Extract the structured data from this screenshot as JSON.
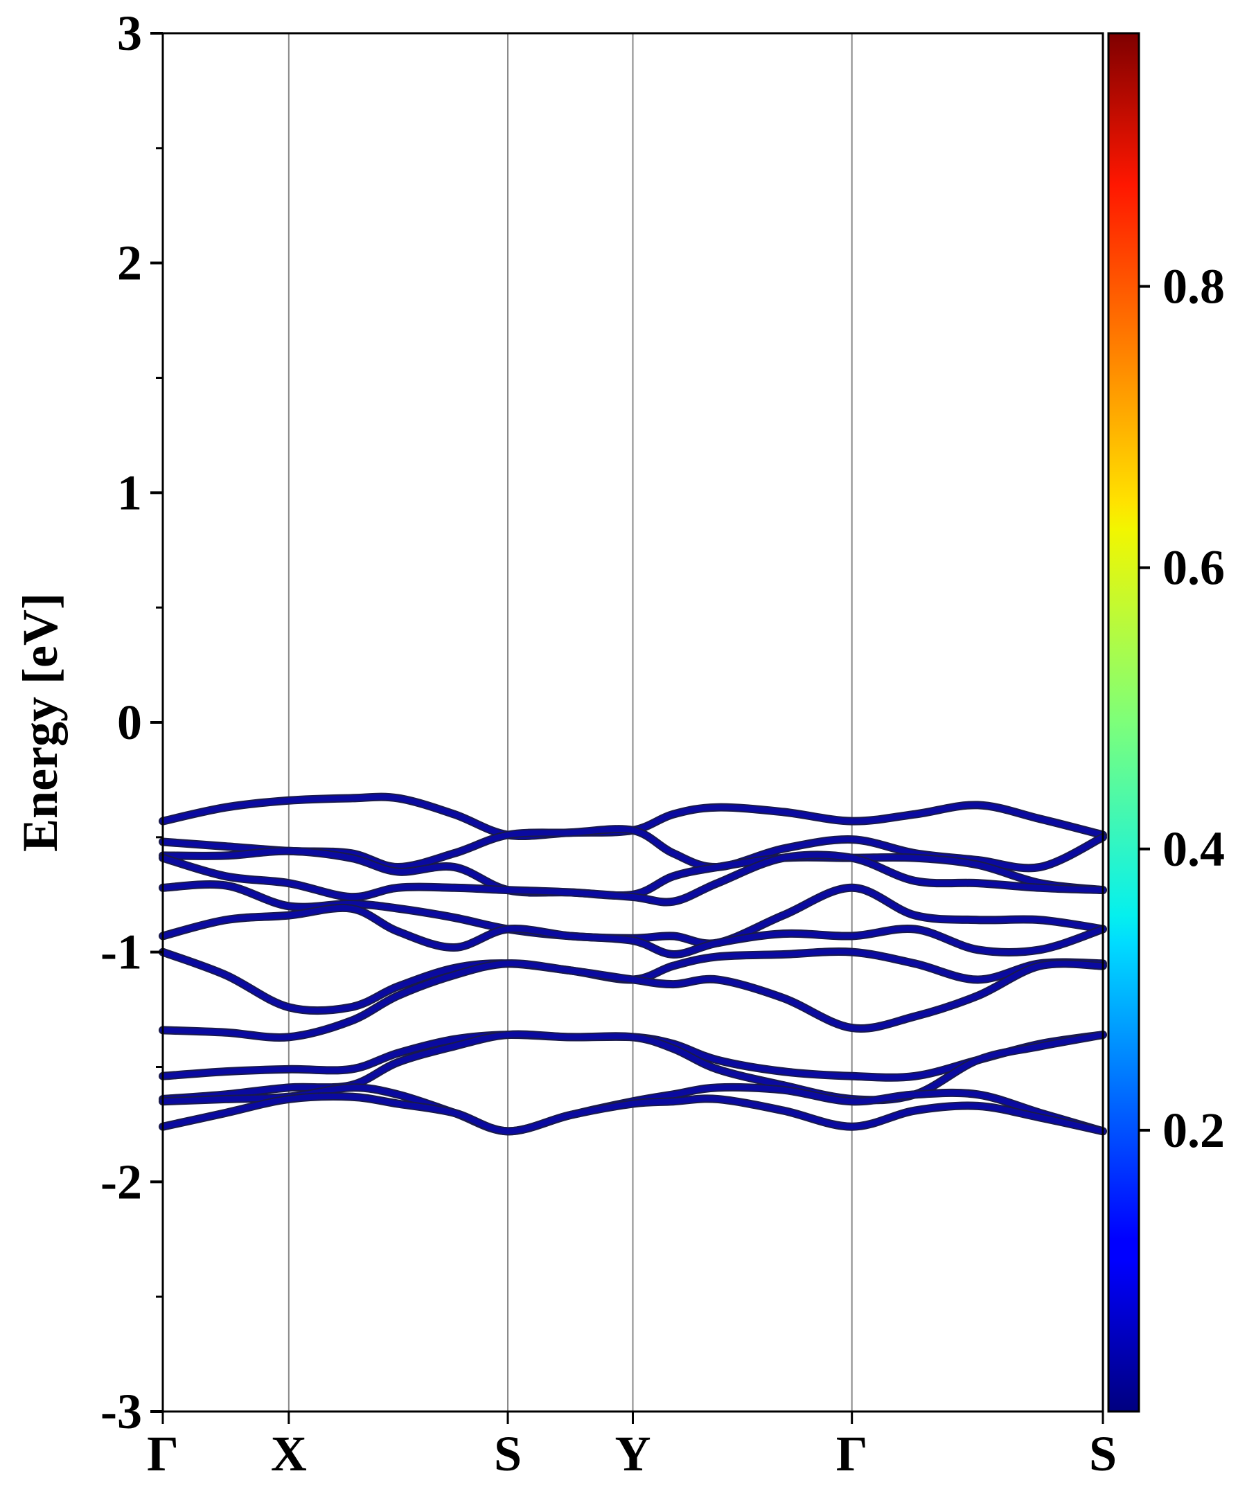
{
  "chart_data": {
    "type": "line",
    "title": "",
    "xlabel": "",
    "ylabel": "Energy [eV]",
    "ylim": [
      -3,
      3
    ],
    "yticks": [
      "3",
      "2",
      "1",
      "0",
      "-1",
      "-2",
      "-3"
    ],
    "ytick_values": [
      3,
      2,
      1,
      0,
      -1,
      -2,
      -3
    ],
    "yminor_values": [
      2.5,
      1.5,
      0.5,
      -0.5,
      -1.5,
      -2.5
    ],
    "xlim": [
      0,
      1
    ],
    "high_symmetry_points": [
      {
        "label": "Γ",
        "k": 0
      },
      {
        "label": "X",
        "k": 0.134
      },
      {
        "label": "S",
        "k": 0.367
      },
      {
        "label": "Y",
        "k": 0.5
      },
      {
        "label": "Γ",
        "k": 0.733
      },
      {
        "label": "S",
        "k": 1
      }
    ],
    "k": [
      0,
      0.067,
      0.134,
      0.2,
      0.25,
      0.31,
      0.367,
      0.433,
      0.5,
      0.543,
      0.59,
      0.66,
      0.733,
      0.8,
      0.867,
      0.933,
      1
    ],
    "bands": [
      [
        -0.43,
        -0.37,
        -0.34,
        -0.33,
        -0.33,
        -0.4,
        -0.49,
        -0.48,
        -0.47,
        -0.4,
        -0.37,
        -0.39,
        -0.43,
        -0.4,
        -0.36,
        -0.42,
        -0.49
      ],
      [
        -0.52,
        -0.54,
        -0.56,
        -0.57,
        -0.63,
        -0.57,
        -0.49,
        -0.48,
        -0.47,
        -0.57,
        -0.63,
        -0.55,
        -0.51,
        -0.57,
        -0.6,
        -0.63,
        -0.5
      ],
      [
        -0.58,
        -0.58,
        -0.56,
        -0.59,
        -0.65,
        -0.63,
        -0.73,
        -0.74,
        -0.75,
        -0.67,
        -0.63,
        -0.59,
        -0.59,
        -0.59,
        -0.62,
        -0.7,
        -0.73
      ],
      [
        -0.59,
        -0.67,
        -0.7,
        -0.76,
        -0.72,
        -0.72,
        -0.73,
        -0.74,
        -0.76,
        -0.78,
        -0.7,
        -0.59,
        -0.59,
        -0.69,
        -0.7,
        -0.72,
        -0.73
      ],
      [
        -0.72,
        -0.71,
        -0.8,
        -0.79,
        -0.81,
        -0.85,
        -0.9,
        -0.93,
        -0.94,
        -0.93,
        -0.96,
        -0.84,
        -0.72,
        -0.84,
        -0.86,
        -0.86,
        -0.9
      ],
      [
        -0.93,
        -0.86,
        -0.84,
        -0.81,
        -0.91,
        -0.98,
        -0.9,
        -0.93,
        -0.95,
        -1.01,
        -0.96,
        -0.92,
        -0.93,
        -0.9,
        -0.99,
        -0.99,
        -0.9
      ],
      [
        -1.0,
        -1.1,
        -1.24,
        -1.24,
        -1.15,
        -1.07,
        -1.05,
        -1.08,
        -1.12,
        -1.06,
        -1.02,
        -1.01,
        -1.0,
        -1.05,
        -1.12,
        -1.05,
        -1.05
      ],
      [
        -1.34,
        -1.35,
        -1.37,
        -1.3,
        -1.19,
        -1.1,
        -1.05,
        -1.08,
        -1.12,
        -1.14,
        -1.12,
        -1.2,
        -1.33,
        -1.28,
        -1.19,
        -1.06,
        -1.06
      ],
      [
        -1.54,
        -1.52,
        -1.51,
        -1.51,
        -1.44,
        -1.38,
        -1.36,
        -1.37,
        -1.37,
        -1.4,
        -1.47,
        -1.52,
        -1.54,
        -1.54,
        -1.47,
        -1.4,
        -1.36
      ],
      [
        -1.64,
        -1.62,
        -1.59,
        -1.58,
        -1.48,
        -1.41,
        -1.36,
        -1.37,
        -1.37,
        -1.42,
        -1.51,
        -1.58,
        -1.64,
        -1.62,
        -1.47,
        -1.41,
        -1.36
      ],
      [
        -1.65,
        -1.64,
        -1.63,
        -1.59,
        -1.62,
        -1.7,
        -1.78,
        -1.71,
        -1.65,
        -1.62,
        -1.59,
        -1.6,
        -1.65,
        -1.62,
        -1.62,
        -1.7,
        -1.78
      ],
      [
        -1.76,
        -1.7,
        -1.64,
        -1.63,
        -1.66,
        -1.7,
        -1.78,
        -1.71,
        -1.66,
        -1.65,
        -1.64,
        -1.69,
        -1.76,
        -1.69,
        -1.67,
        -1.72,
        -1.78
      ]
    ],
    "band_weight": 0.02,
    "band_color": "#0a0aa0",
    "grid": false,
    "vertical_lines_at_high_symmetry": true,
    "colorbar": {
      "colormap": "jet",
      "range": [
        0,
        0.98
      ],
      "ticks": [
        "0.2",
        "0.4",
        "0.6",
        "0.8"
      ],
      "tick_values": [
        0.2,
        0.4,
        0.6,
        0.8
      ]
    }
  }
}
